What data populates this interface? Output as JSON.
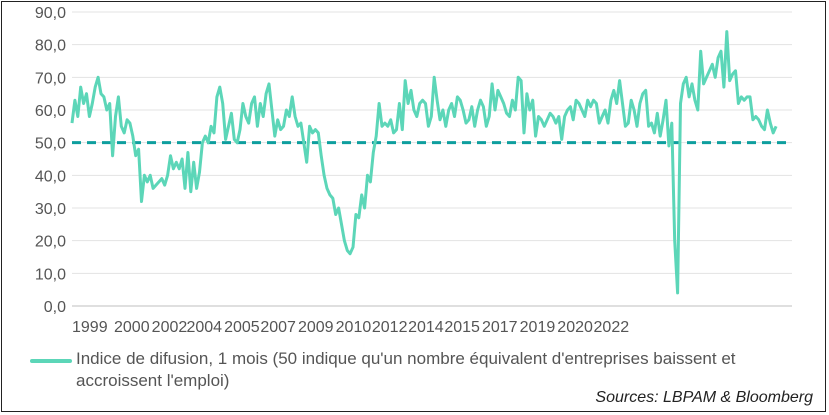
{
  "chart_data": {
    "type": "line",
    "title": "",
    "xlabel": "",
    "ylabel": "",
    "ylim": [
      0,
      90
    ],
    "xlim": [
      1999.0,
      2023.85
    ],
    "yticks": [
      "0,0",
      "10,0",
      "20,0",
      "30,0",
      "40,0",
      "50,0",
      "60,0",
      "70,0",
      "80,0",
      "90,0"
    ],
    "xticks": [
      {
        "label": "1999",
        "x": 1999.0
      },
      {
        "label": "2000",
        "x": 2000.45
      },
      {
        "label": "2002",
        "x": 2001.75
      },
      {
        "label": "2004",
        "x": 2002.95
      },
      {
        "label": "2005",
        "x": 2004.25
      },
      {
        "label": "2007",
        "x": 2005.5
      },
      {
        "label": "2009",
        "x": 2006.8
      },
      {
        "label": "2010",
        "x": 2008.1
      },
      {
        "label": "2012",
        "x": 2009.35
      },
      {
        "label": "2014",
        "x": 2010.6
      },
      {
        "label": "2015",
        "x": 2011.85
      },
      {
        "label": "2017",
        "x": 2013.15
      },
      {
        "label": "2019",
        "x": 2014.45
      },
      {
        "label": "2020",
        "x": 2015.75
      },
      {
        "label": "2022",
        "x": 2017.0
      }
    ],
    "grid": true,
    "reference_line": {
      "y": 50,
      "color": "#0e9e9e",
      "style": "dashed"
    },
    "series": [
      {
        "name": "Indice de difusion, 1 mois (50 indique qu'un nombre équivalent d'entreprises baissent et accroissent l'emploi)",
        "color": "#5cd6b8",
        "points": [
          [
            1999.0,
            56
          ],
          [
            1999.1,
            63
          ],
          [
            1999.2,
            58
          ],
          [
            1999.3,
            67
          ],
          [
            1999.4,
            62
          ],
          [
            1999.5,
            65
          ],
          [
            1999.6,
            58
          ],
          [
            1999.7,
            62
          ],
          [
            1999.8,
            67
          ],
          [
            1999.9,
            70
          ],
          [
            2000.0,
            65
          ],
          [
            2000.1,
            64
          ],
          [
            2000.2,
            60
          ],
          [
            2000.3,
            62
          ],
          [
            2000.4,
            46
          ],
          [
            2000.5,
            58
          ],
          [
            2000.6,
            64
          ],
          [
            2000.7,
            55
          ],
          [
            2000.8,
            53
          ],
          [
            2000.9,
            57
          ],
          [
            2001.0,
            56
          ],
          [
            2001.1,
            52
          ],
          [
            2001.2,
            46
          ],
          [
            2001.3,
            48
          ],
          [
            2001.4,
            32
          ],
          [
            2001.5,
            40
          ],
          [
            2001.6,
            38
          ],
          [
            2001.7,
            40
          ],
          [
            2001.8,
            36
          ],
          [
            2001.9,
            37
          ],
          [
            2002.0,
            38
          ],
          [
            2002.1,
            39
          ],
          [
            2002.2,
            37
          ],
          [
            2002.3,
            40
          ],
          [
            2002.4,
            46
          ],
          [
            2002.5,
            42
          ],
          [
            2002.6,
            44
          ],
          [
            2002.7,
            42
          ],
          [
            2002.8,
            45
          ],
          [
            2002.9,
            36
          ],
          [
            2003.0,
            47
          ],
          [
            2003.1,
            35
          ],
          [
            2003.2,
            44
          ],
          [
            2003.3,
            36
          ],
          [
            2003.4,
            41
          ],
          [
            2003.5,
            50
          ],
          [
            2003.6,
            52
          ],
          [
            2003.7,
            50
          ],
          [
            2003.8,
            55
          ],
          [
            2003.9,
            53
          ],
          [
            2004.0,
            64
          ],
          [
            2004.1,
            67
          ],
          [
            2004.2,
            62
          ],
          [
            2004.3,
            51
          ],
          [
            2004.4,
            55
          ],
          [
            2004.5,
            59
          ],
          [
            2004.6,
            51
          ],
          [
            2004.7,
            50
          ],
          [
            2004.8,
            54
          ],
          [
            2004.9,
            62
          ],
          [
            2005.0,
            58
          ],
          [
            2005.1,
            56
          ],
          [
            2005.2,
            62
          ],
          [
            2005.3,
            64
          ],
          [
            2005.4,
            55
          ],
          [
            2005.5,
            62
          ],
          [
            2005.6,
            58
          ],
          [
            2005.7,
            65
          ],
          [
            2005.8,
            68
          ],
          [
            2005.9,
            60
          ],
          [
            2006.0,
            52
          ],
          [
            2006.1,
            57
          ],
          [
            2006.2,
            54
          ],
          [
            2006.3,
            55
          ],
          [
            2006.4,
            60
          ],
          [
            2006.5,
            58
          ],
          [
            2006.6,
            64
          ],
          [
            2006.7,
            58
          ],
          [
            2006.8,
            55
          ],
          [
            2006.9,
            56
          ],
          [
            2007.0,
            50
          ],
          [
            2007.1,
            44
          ],
          [
            2007.2,
            55
          ],
          [
            2007.3,
            53
          ],
          [
            2007.4,
            54
          ],
          [
            2007.5,
            53
          ],
          [
            2007.6,
            46
          ],
          [
            2007.7,
            40
          ],
          [
            2007.8,
            36
          ],
          [
            2007.9,
            34
          ],
          [
            2008.0,
            33
          ],
          [
            2008.1,
            28
          ],
          [
            2008.2,
            30
          ],
          [
            2008.3,
            25
          ],
          [
            2008.4,
            20
          ],
          [
            2008.5,
            17
          ],
          [
            2008.6,
            16
          ],
          [
            2008.7,
            18
          ],
          [
            2008.8,
            28
          ],
          [
            2008.9,
            27
          ],
          [
            2009.0,
            34
          ],
          [
            2009.1,
            30
          ],
          [
            2009.2,
            40
          ],
          [
            2009.3,
            38
          ],
          [
            2009.4,
            47
          ],
          [
            2009.5,
            52
          ],
          [
            2009.6,
            62
          ],
          [
            2009.7,
            55
          ],
          [
            2009.8,
            56
          ],
          [
            2009.9,
            55
          ],
          [
            2010.0,
            57
          ],
          [
            2010.1,
            53
          ],
          [
            2010.2,
            54
          ],
          [
            2010.3,
            62
          ],
          [
            2010.4,
            54
          ],
          [
            2010.5,
            69
          ],
          [
            2010.6,
            62
          ],
          [
            2010.7,
            66
          ],
          [
            2010.8,
            60
          ],
          [
            2010.9,
            58
          ],
          [
            2011.0,
            62
          ],
          [
            2011.1,
            63
          ],
          [
            2011.2,
            62
          ],
          [
            2011.3,
            55
          ],
          [
            2011.4,
            58
          ],
          [
            2011.5,
            70
          ],
          [
            2011.6,
            63
          ],
          [
            2011.7,
            57
          ],
          [
            2011.8,
            60
          ],
          [
            2011.9,
            55
          ],
          [
            2012.0,
            60
          ],
          [
            2012.1,
            62
          ],
          [
            2012.2,
            58
          ],
          [
            2012.3,
            64
          ],
          [
            2012.4,
            63
          ],
          [
            2012.5,
            60
          ],
          [
            2012.6,
            56
          ],
          [
            2012.7,
            57
          ],
          [
            2012.8,
            61
          ],
          [
            2012.9,
            55
          ],
          [
            2013.0,
            60
          ],
          [
            2013.1,
            63
          ],
          [
            2013.2,
            61
          ],
          [
            2013.3,
            55
          ],
          [
            2013.4,
            58
          ],
          [
            2013.5,
            68
          ],
          [
            2013.6,
            60
          ],
          [
            2013.7,
            66
          ],
          [
            2013.8,
            64
          ],
          [
            2013.9,
            62
          ],
          [
            2014.0,
            59
          ],
          [
            2014.1,
            58
          ],
          [
            2014.2,
            63
          ],
          [
            2014.3,
            60
          ],
          [
            2014.4,
            70
          ],
          [
            2014.5,
            69
          ],
          [
            2014.6,
            53
          ],
          [
            2014.7,
            65
          ],
          [
            2014.8,
            60
          ],
          [
            2014.9,
            63
          ],
          [
            2015.0,
            52
          ],
          [
            2015.1,
            58
          ],
          [
            2015.2,
            57
          ],
          [
            2015.3,
            55
          ],
          [
            2015.4,
            57
          ],
          [
            2015.5,
            59
          ],
          [
            2015.6,
            58
          ],
          [
            2015.7,
            56
          ],
          [
            2015.8,
            58
          ],
          [
            2015.9,
            51
          ],
          [
            2016.0,
            58
          ],
          [
            2016.1,
            60
          ],
          [
            2016.2,
            61
          ],
          [
            2016.3,
            57
          ],
          [
            2016.4,
            63
          ],
          [
            2016.5,
            62
          ],
          [
            2016.6,
            60
          ],
          [
            2016.7,
            58
          ],
          [
            2016.8,
            63
          ],
          [
            2016.9,
            61
          ],
          [
            2017.0,
            63
          ],
          [
            2017.1,
            62
          ],
          [
            2017.2,
            56
          ],
          [
            2017.3,
            58
          ],
          [
            2017.4,
            60
          ],
          [
            2017.5,
            56
          ],
          [
            2017.6,
            63
          ],
          [
            2017.7,
            66
          ],
          [
            2017.8,
            62
          ],
          [
            2017.9,
            69
          ],
          [
            2018.0,
            62
          ],
          [
            2018.1,
            55
          ],
          [
            2018.2,
            56
          ],
          [
            2018.3,
            63
          ],
          [
            2018.4,
            60
          ],
          [
            2018.5,
            55
          ],
          [
            2018.6,
            62
          ],
          [
            2018.7,
            65
          ],
          [
            2018.8,
            66
          ],
          [
            2018.9,
            55
          ],
          [
            2019.0,
            56
          ],
          [
            2019.1,
            53
          ],
          [
            2019.2,
            59
          ],
          [
            2019.3,
            52
          ],
          [
            2019.4,
            57
          ],
          [
            2019.5,
            63
          ],
          [
            2019.6,
            49
          ],
          [
            2019.7,
            56
          ],
          [
            2019.8,
            20
          ],
          [
            2019.9,
            4
          ],
          [
            2020.0,
            62
          ],
          [
            2020.1,
            68
          ],
          [
            2020.2,
            70
          ],
          [
            2020.3,
            64
          ],
          [
            2020.4,
            68
          ],
          [
            2020.5,
            63
          ],
          [
            2020.6,
            60
          ],
          [
            2020.7,
            78
          ],
          [
            2020.8,
            68
          ],
          [
            2020.9,
            70
          ],
          [
            2021.0,
            72
          ],
          [
            2021.1,
            74
          ],
          [
            2021.2,
            70
          ],
          [
            2021.3,
            76
          ],
          [
            2021.4,
            78
          ],
          [
            2021.5,
            67
          ],
          [
            2021.6,
            84
          ],
          [
            2021.7,
            69
          ],
          [
            2021.8,
            71
          ],
          [
            2021.9,
            72
          ],
          [
            2022.0,
            62
          ],
          [
            2022.1,
            64
          ],
          [
            2022.2,
            63
          ],
          [
            2022.3,
            64
          ],
          [
            2022.4,
            64
          ],
          [
            2022.5,
            57
          ],
          [
            2022.6,
            58
          ],
          [
            2022.7,
            57
          ],
          [
            2022.8,
            55
          ],
          [
            2022.9,
            54
          ],
          [
            2023.0,
            60
          ],
          [
            2023.1,
            56
          ],
          [
            2023.2,
            53
          ],
          [
            2023.3,
            55
          ]
        ]
      }
    ]
  },
  "legend": {
    "label": "Indice de difusion, 1 mois (50 indique qu'un nombre équivalent d'entreprises baissent et accroissent l'emploi)"
  },
  "source": "Sources: LBPAM & Bloomberg"
}
